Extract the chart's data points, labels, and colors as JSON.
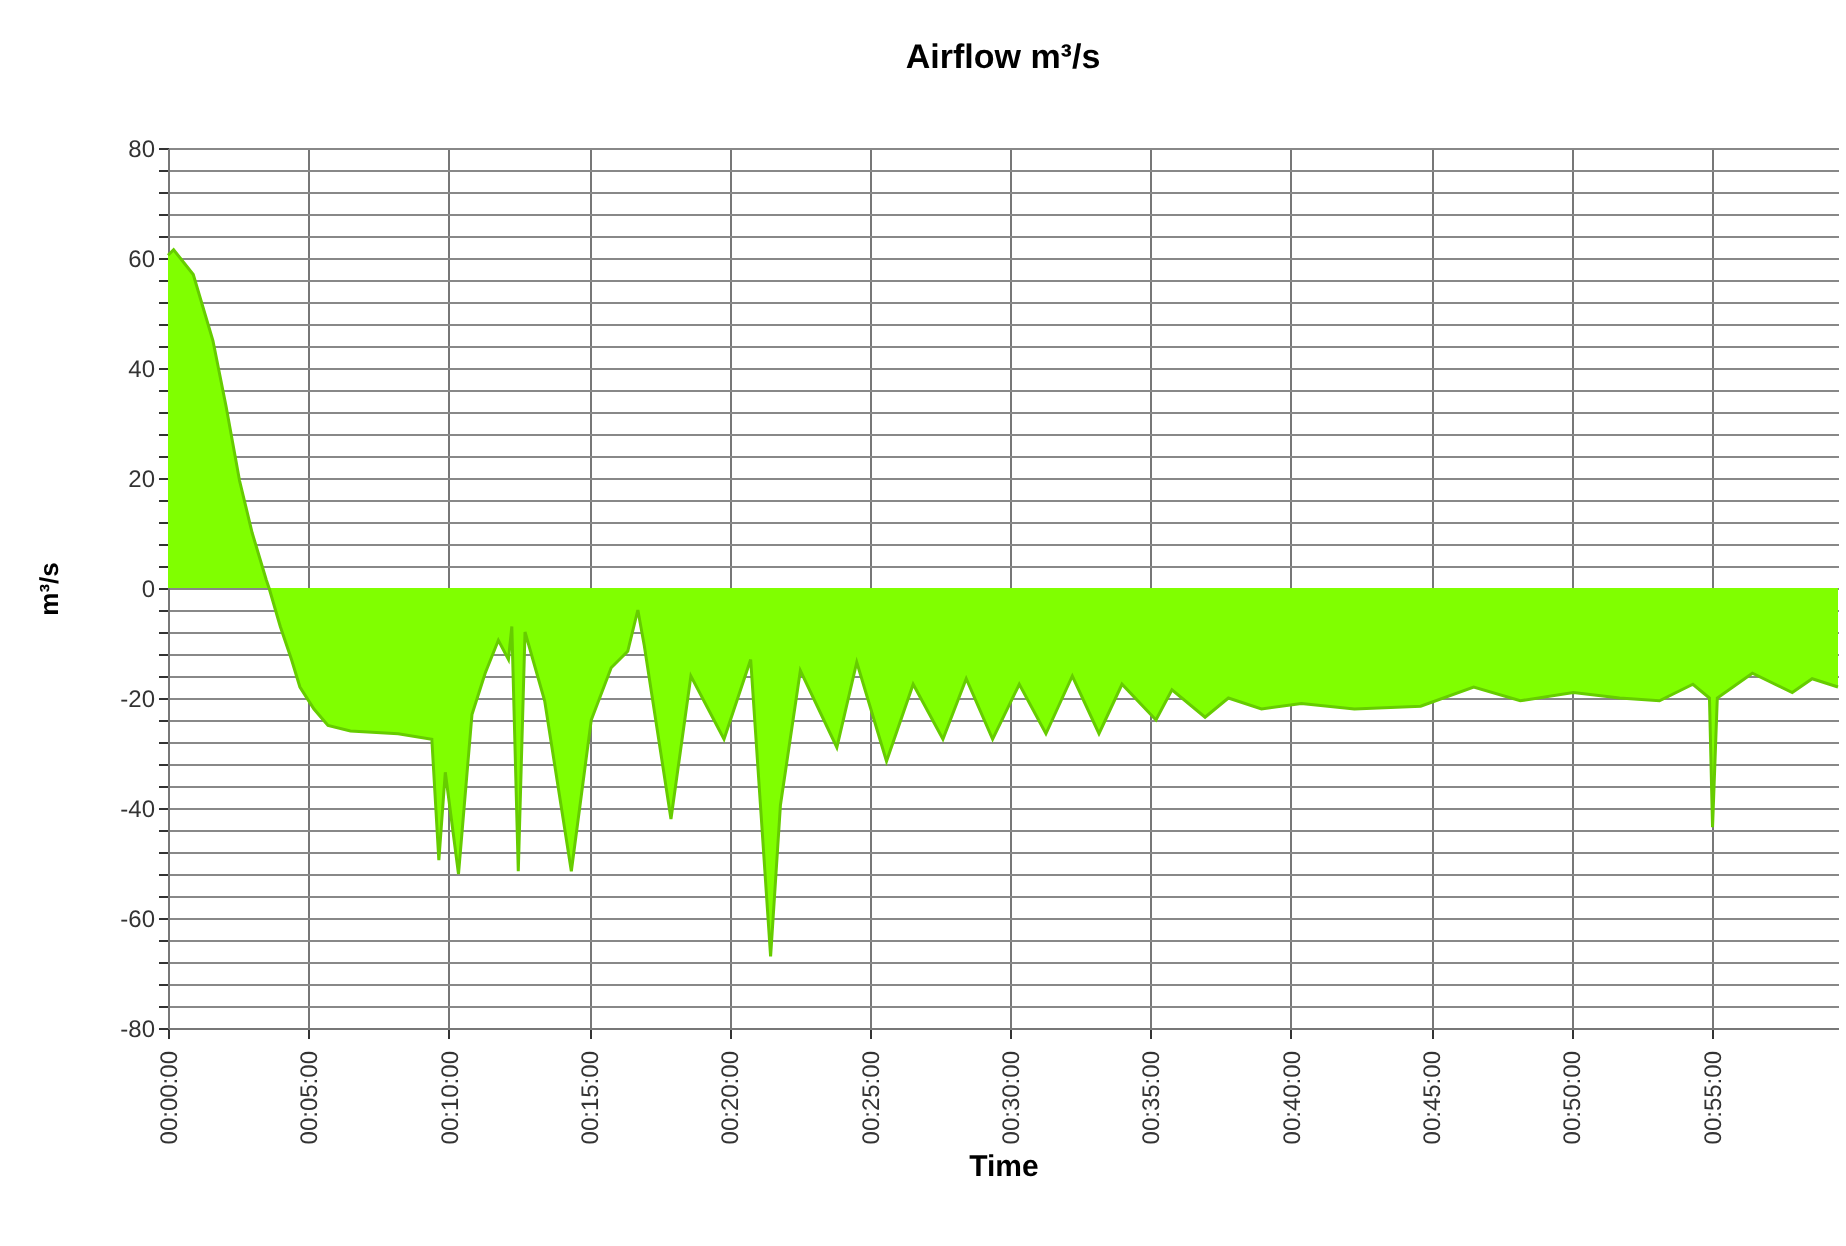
{
  "chart_data": {
    "type": "area",
    "title": "Airflow m³/s",
    "xlabel": "Time",
    "ylabel": "m³/s",
    "x": [
      0,
      0.2,
      0.9,
      1.6,
      2.07,
      2.55,
      3.0,
      3.5,
      3.6,
      4.0,
      4.4,
      4.7,
      5.2,
      5.7,
      6.5,
      8.2,
      9.4,
      9.65,
      9.88,
      10.35,
      10.83,
      11.3,
      11.77,
      12.13,
      12.25,
      12.48,
      12.72,
      13.42,
      14.37,
      15.08,
      15.79,
      16.38,
      16.74,
      16.97,
      17.92,
      18.63,
      19.81,
      20.76,
      21.47,
      21.82,
      22.53,
      23.83,
      24.54,
      25.6,
      26.55,
      27.61,
      28.44,
      29.38,
      30.33,
      31.28,
      32.22,
      33.17,
      33.99,
      35.2,
      35.77,
      36.95,
      37.78,
      38.96,
      40.38,
      42.27,
      44.63,
      46.52,
      48.18,
      50.07,
      51.72,
      53.14,
      54.33,
      54.92,
      55.03,
      55.2,
      56.45,
      57.87,
      58.58,
      59.5
    ],
    "series": [
      {
        "color": "#80ff00",
        "values": [
          60.5,
          61.5,
          57,
          45,
          33,
          19.5,
          10,
          1.5,
          0,
          -7,
          -13,
          -18,
          -22,
          -25,
          -26,
          -26.5,
          -27.5,
          -49.5,
          -33.5,
          -52,
          -23,
          -15.5,
          -9.5,
          -13,
          -7,
          -51.5,
          -8,
          -20.5,
          -51.5,
          -24,
          -14.5,
          -11.5,
          -4,
          -10.5,
          -42,
          -16,
          -27.5,
          -13,
          -67,
          -39.5,
          -15,
          -29,
          -13.5,
          -31.5,
          -17.5,
          -27.5,
          -16.5,
          -27.5,
          -17.5,
          -26.5,
          -16,
          -26.5,
          -17.5,
          -24,
          -18.5,
          -23.5,
          -20,
          -22,
          -21,
          -22,
          -21.5,
          -18,
          -20.5,
          -19,
          -20,
          -20.5,
          -17.5,
          -20,
          -43.5,
          -20,
          -15.5,
          -19,
          -16.5,
          -18
        ]
      }
    ],
    "xlim": [
      0,
      59.5
    ],
    "xticks": [
      {
        "value": 0,
        "label": "00:00:00"
      },
      {
        "value": 5,
        "label": "00:05:00"
      },
      {
        "value": 10,
        "label": "00:10:00"
      },
      {
        "value": 15,
        "label": "00:15:00"
      },
      {
        "value": 20,
        "label": "00:20:00"
      },
      {
        "value": 25,
        "label": "00:25:00"
      },
      {
        "value": 30,
        "label": "00:30:00"
      },
      {
        "value": 35,
        "label": "00:35:00"
      },
      {
        "value": 40,
        "label": "00:40:00"
      },
      {
        "value": 45,
        "label": "00:45:00"
      },
      {
        "value": 50,
        "label": "00:50:00"
      },
      {
        "value": 55,
        "label": "00:55:00"
      }
    ],
    "ylim": [
      -80,
      80
    ],
    "yticks": [
      -80,
      {
        "value": -76,
        "label": null
      },
      {
        "value": -72,
        "label": null
      },
      {
        "value": -68,
        "label": null
      },
      {
        "value": -64,
        "label": null
      },
      -60,
      {
        "value": -56,
        "label": null
      },
      {
        "value": -52,
        "label": null
      },
      {
        "value": -48,
        "label": null
      },
      {
        "value": -44,
        "label": null
      },
      -40,
      {
        "value": -36,
        "label": null
      },
      {
        "value": -32,
        "label": null
      },
      {
        "value": -28,
        "label": null
      },
      {
        "value": -24,
        "label": null
      },
      -20,
      {
        "value": -16,
        "label": null
      },
      {
        "value": -12,
        "label": null
      },
      {
        "value": -8,
        "label": null
      },
      {
        "value": -4,
        "label": null
      },
      0,
      {
        "value": 4,
        "label": null
      },
      {
        "value": 8,
        "label": null
      },
      {
        "value": 12,
        "label": null
      },
      {
        "value": 16,
        "label": null
      },
      20,
      {
        "value": 24,
        "label": null
      },
      {
        "value": 28,
        "label": null
      },
      {
        "value": 32,
        "label": null
      },
      {
        "value": 36,
        "label": null
      },
      40,
      {
        "value": 44,
        "label": null
      },
      {
        "value": 48,
        "label": null
      },
      {
        "value": 52,
        "label": null
      },
      {
        "value": 56,
        "label": null
      },
      60,
      {
        "value": 64,
        "label": null
      },
      {
        "value": 68,
        "label": null
      },
      {
        "value": 72,
        "label": null
      },
      {
        "value": 76,
        "label": null
      },
      80
    ],
    "grid": true
  }
}
